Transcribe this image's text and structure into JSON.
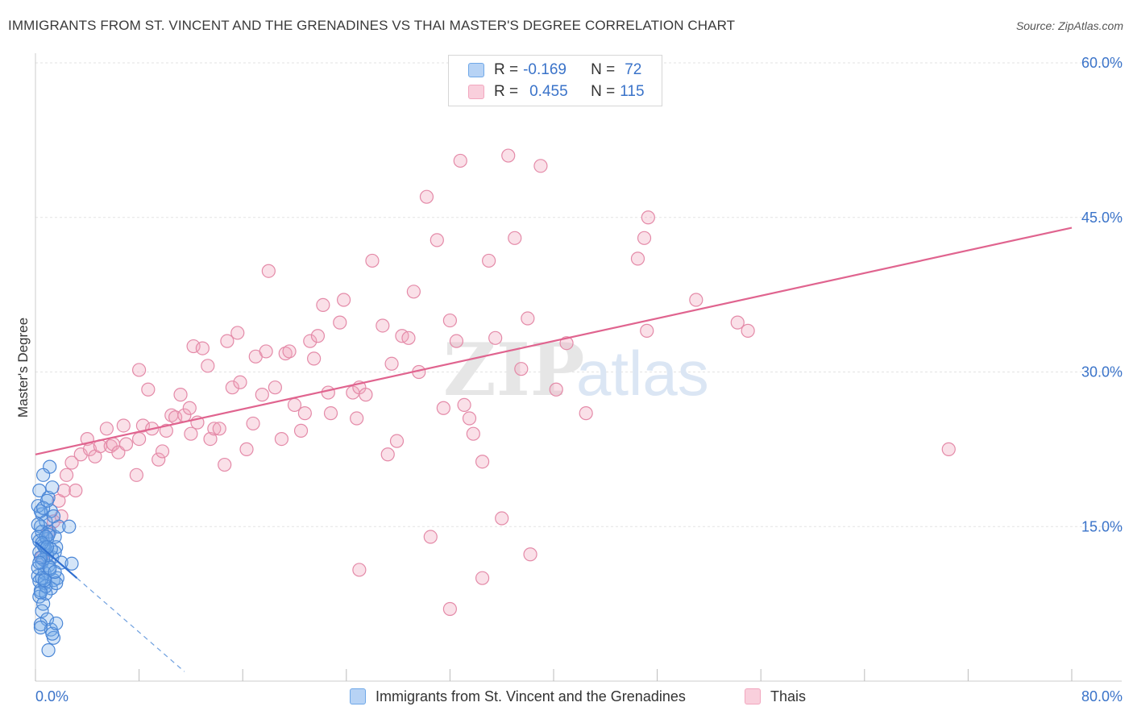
{
  "title": "IMMIGRANTS FROM ST. VINCENT AND THE GRENADINES VS THAI MASTER'S DEGREE CORRELATION CHART",
  "source": "Source: ZipAtlas.com",
  "watermark": {
    "zip": "ZIP",
    "atlas": "atlas"
  },
  "legend": {
    "r_label": "R =",
    "n_label": "N =",
    "rows": [
      {
        "r": "-0.169",
        "n": "72",
        "color": "#6fa8e8"
      },
      {
        "r": "0.455",
        "n": "115",
        "color": "#f2a6be"
      }
    ]
  },
  "bottom_legend": [
    {
      "label": "Immigrants from St. Vincent and the Grenadines",
      "color": "#6fa8e8"
    },
    {
      "label": "Thais",
      "color": "#f2a6be"
    }
  ],
  "chart_data": {
    "type": "scatter",
    "title": "IMMIGRANTS FROM ST. VINCENT AND THE GRENADINES VS THAI MASTER'S DEGREE CORRELATION CHART",
    "xlabel": "",
    "ylabel": "Master's Degree",
    "xlim": [
      0,
      80
    ],
    "ylim": [
      0,
      60
    ],
    "x_tick_labels": [
      "0.0%",
      "80.0%"
    ],
    "y_tick_labels": [
      "15.0%",
      "30.0%",
      "45.0%",
      "60.0%"
    ],
    "y_ticks": [
      15,
      30,
      45,
      60
    ],
    "grid": true,
    "series": [
      {
        "name": "Immigrants from St. Vincent and the Grenadines",
        "color": "#6fa8e8",
        "stroke": "#4a86d6",
        "trend": {
          "x0": 0.0,
          "y0": 13.5,
          "x1": 3.2,
          "y1": 10.0,
          "dashed_to_x": 11.5
        },
        "points": [
          [
            0.3,
            18.5
          ],
          [
            0.5,
            16.2
          ],
          [
            0.4,
            15.0
          ],
          [
            0.2,
            14.0
          ],
          [
            0.6,
            13.2
          ],
          [
            0.3,
            12.5
          ],
          [
            0.8,
            12.8
          ],
          [
            0.5,
            11.5
          ],
          [
            0.2,
            10.2
          ],
          [
            0.7,
            9.5
          ],
          [
            0.4,
            8.8
          ],
          [
            0.3,
            8.2
          ],
          [
            0.6,
            7.5
          ],
          [
            0.5,
            6.8
          ],
          [
            0.9,
            6.0
          ],
          [
            0.4,
            5.5
          ],
          [
            1.0,
            17.8
          ],
          [
            1.2,
            16.5
          ],
          [
            0.8,
            15.5
          ],
          [
            1.1,
            14.5
          ],
          [
            0.9,
            13.8
          ],
          [
            1.3,
            12.0
          ],
          [
            1.0,
            11.2
          ],
          [
            0.7,
            10.5
          ],
          [
            1.4,
            9.8
          ],
          [
            1.2,
            9.0
          ],
          [
            0.8,
            8.5
          ],
          [
            1.5,
            14.0
          ],
          [
            1.6,
            13.0
          ],
          [
            1.2,
            5.0
          ],
          [
            1.4,
            4.2
          ],
          [
            1.0,
            3.0
          ],
          [
            1.1,
            20.8
          ],
          [
            0.6,
            20.0
          ],
          [
            1.3,
            18.8
          ],
          [
            0.2,
            17.0
          ],
          [
            0.4,
            16.5
          ],
          [
            1.8,
            15.0
          ],
          [
            1.5,
            12.5
          ],
          [
            2.0,
            11.5
          ],
          [
            1.7,
            10.0
          ],
          [
            0.5,
            14.5
          ],
          [
            0.3,
            13.6
          ],
          [
            0.9,
            12.2
          ],
          [
            0.6,
            11.8
          ],
          [
            1.1,
            10.8
          ],
          [
            0.3,
            9.7
          ],
          [
            0.8,
            9.2
          ],
          [
            1.6,
            9.5
          ],
          [
            0.2,
            11.0
          ],
          [
            0.5,
            10.0
          ],
          [
            2.6,
            15.0
          ],
          [
            2.8,
            11.4
          ],
          [
            0.4,
            5.2
          ],
          [
            1.3,
            4.6
          ],
          [
            1.6,
            5.6
          ],
          [
            0.7,
            13.0
          ],
          [
            0.4,
            12.0
          ],
          [
            1.0,
            14.2
          ],
          [
            0.2,
            15.2
          ],
          [
            0.6,
            16.8
          ],
          [
            0.9,
            17.5
          ],
          [
            1.4,
            16.0
          ],
          [
            0.3,
            11.5
          ],
          [
            1.2,
            12.8
          ],
          [
            0.8,
            14.0
          ],
          [
            0.5,
            13.4
          ],
          [
            1.1,
            11.0
          ],
          [
            0.7,
            9.8
          ],
          [
            0.4,
            8.6
          ],
          [
            1.5,
            10.6
          ],
          [
            0.9,
            13.0
          ]
        ]
      },
      {
        "name": "Thais",
        "color": "#f2a6be",
        "stroke": "#e48aa8",
        "trend": {
          "x0": 0.0,
          "y0": 22.0,
          "x1": 80.0,
          "y1": 44.0
        },
        "points": [
          [
            0.5,
            12.0
          ],
          [
            1.0,
            14.5
          ],
          [
            1.4,
            15.5
          ],
          [
            1.8,
            17.5
          ],
          [
            2.0,
            16.0
          ],
          [
            2.2,
            18.5
          ],
          [
            2.4,
            20.0
          ],
          [
            2.8,
            21.2
          ],
          [
            3.1,
            18.5
          ],
          [
            3.5,
            22.0
          ],
          [
            4.0,
            23.5
          ],
          [
            4.2,
            22.5
          ],
          [
            4.6,
            21.8
          ],
          [
            5.0,
            22.8
          ],
          [
            5.5,
            24.5
          ],
          [
            5.8,
            22.8
          ],
          [
            6.0,
            23.0
          ],
          [
            6.4,
            22.2
          ],
          [
            6.8,
            24.8
          ],
          [
            7.0,
            23.0
          ],
          [
            7.8,
            20.0
          ],
          [
            8.0,
            23.5
          ],
          [
            8.3,
            24.8
          ],
          [
            8.7,
            28.3
          ],
          [
            9.0,
            24.5
          ],
          [
            9.5,
            21.5
          ],
          [
            9.8,
            22.3
          ],
          [
            10.1,
            24.3
          ],
          [
            10.5,
            25.8
          ],
          [
            10.8,
            25.6
          ],
          [
            11.2,
            27.8
          ],
          [
            11.5,
            25.8
          ],
          [
            11.9,
            26.5
          ],
          [
            12.2,
            32.5
          ],
          [
            12.5,
            25.1
          ],
          [
            12.9,
            32.3
          ],
          [
            13.3,
            30.6
          ],
          [
            13.5,
            23.5
          ],
          [
            13.8,
            24.5
          ],
          [
            14.2,
            24.5
          ],
          [
            14.6,
            21.0
          ],
          [
            14.8,
            33.0
          ],
          [
            15.2,
            28.5
          ],
          [
            15.6,
            33.8
          ],
          [
            15.8,
            29.0
          ],
          [
            16.3,
            22.5
          ],
          [
            16.8,
            25.0
          ],
          [
            17.0,
            31.5
          ],
          [
            17.5,
            27.8
          ],
          [
            17.8,
            32.0
          ],
          [
            18.0,
            39.8
          ],
          [
            18.5,
            28.5
          ],
          [
            19.0,
            23.5
          ],
          [
            19.3,
            31.8
          ],
          [
            19.6,
            32.0
          ],
          [
            20.0,
            26.8
          ],
          [
            20.5,
            24.3
          ],
          [
            20.8,
            26.0
          ],
          [
            21.2,
            33.0
          ],
          [
            21.5,
            31.3
          ],
          [
            21.8,
            33.5
          ],
          [
            22.2,
            36.5
          ],
          [
            22.6,
            28.0
          ],
          [
            22.8,
            26.0
          ],
          [
            23.5,
            34.8
          ],
          [
            23.8,
            37.0
          ],
          [
            24.5,
            28.0
          ],
          [
            24.8,
            25.5
          ],
          [
            25.0,
            28.5
          ],
          [
            25.5,
            27.8
          ],
          [
            26.0,
            40.8
          ],
          [
            26.8,
            34.5
          ],
          [
            27.2,
            22.0
          ],
          [
            27.5,
            30.8
          ],
          [
            27.9,
            23.3
          ],
          [
            28.3,
            33.5
          ],
          [
            28.8,
            33.3
          ],
          [
            29.2,
            37.8
          ],
          [
            29.6,
            30.0
          ],
          [
            30.2,
            47.0
          ],
          [
            31.0,
            42.8
          ],
          [
            31.5,
            26.5
          ],
          [
            32.0,
            35.0
          ],
          [
            32.5,
            33.0
          ],
          [
            32.8,
            50.5
          ],
          [
            33.1,
            26.8
          ],
          [
            33.5,
            25.5
          ],
          [
            33.8,
            24.0
          ],
          [
            34.5,
            21.3
          ],
          [
            35.0,
            40.8
          ],
          [
            35.5,
            33.3
          ],
          [
            36.0,
            15.8
          ],
          [
            36.5,
            51.0
          ],
          [
            37.0,
            43.0
          ],
          [
            37.5,
            30.3
          ],
          [
            38.0,
            35.2
          ],
          [
            38.2,
            12.3
          ],
          [
            39.0,
            50.0
          ],
          [
            40.2,
            28.3
          ],
          [
            41.0,
            32.8
          ],
          [
            42.5,
            26.0
          ],
          [
            46.5,
            41.0
          ],
          [
            47.0,
            43.0
          ],
          [
            47.3,
            45.0
          ],
          [
            47.2,
            34.0
          ],
          [
            51.0,
            37.0
          ],
          [
            54.2,
            34.8
          ],
          [
            55.0,
            34.0
          ],
          [
            70.5,
            22.5
          ],
          [
            25.0,
            10.8
          ],
          [
            30.5,
            14.0
          ],
          [
            34.5,
            10.0
          ],
          [
            32.0,
            7.0
          ],
          [
            8.0,
            30.2
          ],
          [
            12.0,
            24.0
          ]
        ]
      }
    ]
  }
}
